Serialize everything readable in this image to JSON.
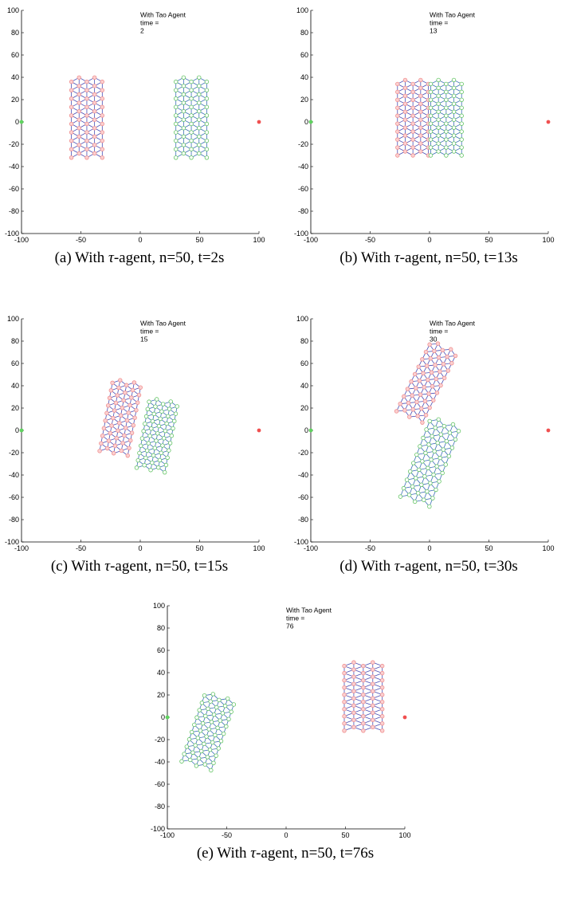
{
  "figure": {
    "panels": [
      {
        "id": "a",
        "annotation": [
          "With Tao Agent",
          "time =",
          "2"
        ],
        "caption": {
          "prefix": "(a) With ",
          "tau": "τ",
          "rest": "-agent, n=50, t=2s"
        },
        "chart_data": {
          "type": "scatter",
          "xlim": [
            -100,
            100
          ],
          "ylim": [
            -100,
            100
          ],
          "xticks": [
            -100,
            -50,
            0,
            50,
            100
          ],
          "yticks": [
            100,
            80,
            60,
            40,
            20,
            0,
            -20,
            -40,
            -60,
            -80,
            -100
          ],
          "grid": false,
          "targets": [
            {
              "x": -100,
              "y": 0,
              "color": "#5fd35f"
            },
            {
              "x": 100,
              "y": 0,
              "color": "#f05050"
            }
          ],
          "clusters": [
            {
              "kind": "red",
              "cx": -45,
              "cy": 2,
              "w": 26,
              "h": 68,
              "angle": 0
            },
            {
              "kind": "green",
              "cx": 43,
              "cy": 2,
              "w": 26,
              "h": 68,
              "angle": 0
            }
          ]
        }
      },
      {
        "id": "b",
        "annotation": [
          "With Tao Agent",
          "time =",
          "13"
        ],
        "caption": {
          "prefix": "(b) With ",
          "tau": "τ",
          "rest": "-agent, n=50, t=13s"
        },
        "chart_data": {
          "type": "scatter",
          "xlim": [
            -100,
            100
          ],
          "ylim": [
            -100,
            100
          ],
          "xticks": [
            -100,
            -50,
            0,
            50,
            100
          ],
          "yticks": [
            100,
            80,
            60,
            40,
            20,
            0,
            -20,
            -40,
            -60,
            -80,
            -100
          ],
          "grid": false,
          "targets": [
            {
              "x": -100,
              "y": 0,
              "color": "#5fd35f"
            },
            {
              "x": 100,
              "y": 0,
              "color": "#f05050"
            }
          ],
          "clusters": [
            {
              "kind": "red",
              "cx": -14,
              "cy": 2,
              "w": 26,
              "h": 64,
              "angle": 0
            },
            {
              "kind": "green",
              "cx": 14,
              "cy": 2,
              "w": 26,
              "h": 64,
              "angle": 0
            }
          ]
        }
      },
      {
        "id": "c",
        "annotation": [
          "With Tao Agent",
          "time =",
          "15"
        ],
        "caption": {
          "prefix": "(c) With ",
          "tau": "τ",
          "rest": "-agent, n=50, t=15s"
        },
        "chart_data": {
          "type": "scatter",
          "xlim": [
            -100,
            100
          ],
          "ylim": [
            -100,
            100
          ],
          "xticks": [
            -100,
            -50,
            0,
            50,
            100
          ],
          "yticks": [
            100,
            80,
            60,
            40,
            20,
            0,
            -20,
            -40,
            -60,
            -80,
            -100
          ],
          "grid": false,
          "targets": [
            {
              "x": -100,
              "y": 0,
              "color": "#5fd35f"
            },
            {
              "x": 100,
              "y": 0,
              "color": "#f05050"
            }
          ],
          "clusters": [
            {
              "kind": "red",
              "cx": -17,
              "cy": 10,
              "w": 24,
              "h": 62,
              "angle": -10
            },
            {
              "kind": "green",
              "cx": 14,
              "cy": -6,
              "w": 24,
              "h": 60,
              "angle": -10
            }
          ]
        }
      },
      {
        "id": "d",
        "annotation": [
          "With Tao Agent",
          "time =",
          "30"
        ],
        "caption": {
          "prefix": "(d) With ",
          "tau": "τ",
          "rest": "-agent, n=50, t=30s"
        },
        "chart_data": {
          "type": "scatter",
          "xlim": [
            -100,
            100
          ],
          "ylim": [
            -100,
            100
          ],
          "xticks": [
            -100,
            -50,
            0,
            50,
            100
          ],
          "yticks": [
            100,
            80,
            60,
            40,
            20,
            0,
            -20,
            -40,
            -60,
            -80,
            -100
          ],
          "grid": false,
          "targets": [
            {
              "x": -100,
              "y": 0,
              "color": "#5fd35f"
            },
            {
              "x": 100,
              "y": 0,
              "color": "#f05050"
            }
          ],
          "clusters": [
            {
              "kind": "red",
              "cx": -3,
              "cy": 42,
              "w": 24,
              "h": 66,
              "angle": -25
            },
            {
              "kind": "green",
              "cx": 0,
              "cy": -30,
              "w": 26,
              "h": 72,
              "angle": -20
            }
          ]
        }
      },
      {
        "id": "e",
        "annotation": [
          "With Tao Agent",
          "time =",
          "76"
        ],
        "caption": {
          "prefix": "(e) With ",
          "tau": "τ",
          "rest": "-agent, n=50, t=76s"
        },
        "chart_data": {
          "type": "scatter",
          "xlim": [
            -100,
            100
          ],
          "ylim": [
            -100,
            100
          ],
          "xticks": [
            -100,
            -50,
            0,
            50,
            100
          ],
          "yticks": [
            100,
            80,
            60,
            40,
            20,
            0,
            -20,
            -40,
            -60,
            -80,
            -100
          ],
          "grid": false,
          "targets": [
            {
              "x": -100,
              "y": 0,
              "color": "#5fd35f"
            },
            {
              "x": 100,
              "y": 0,
              "color": "#f05050"
            }
          ],
          "clusters": [
            {
              "kind": "green",
              "cx": -66,
              "cy": -14,
              "w": 26,
              "h": 62,
              "angle": -18
            },
            {
              "kind": "red",
              "cx": 65,
              "cy": 17,
              "w": 32,
              "h": 58,
              "angle": 0
            }
          ]
        }
      }
    ]
  }
}
